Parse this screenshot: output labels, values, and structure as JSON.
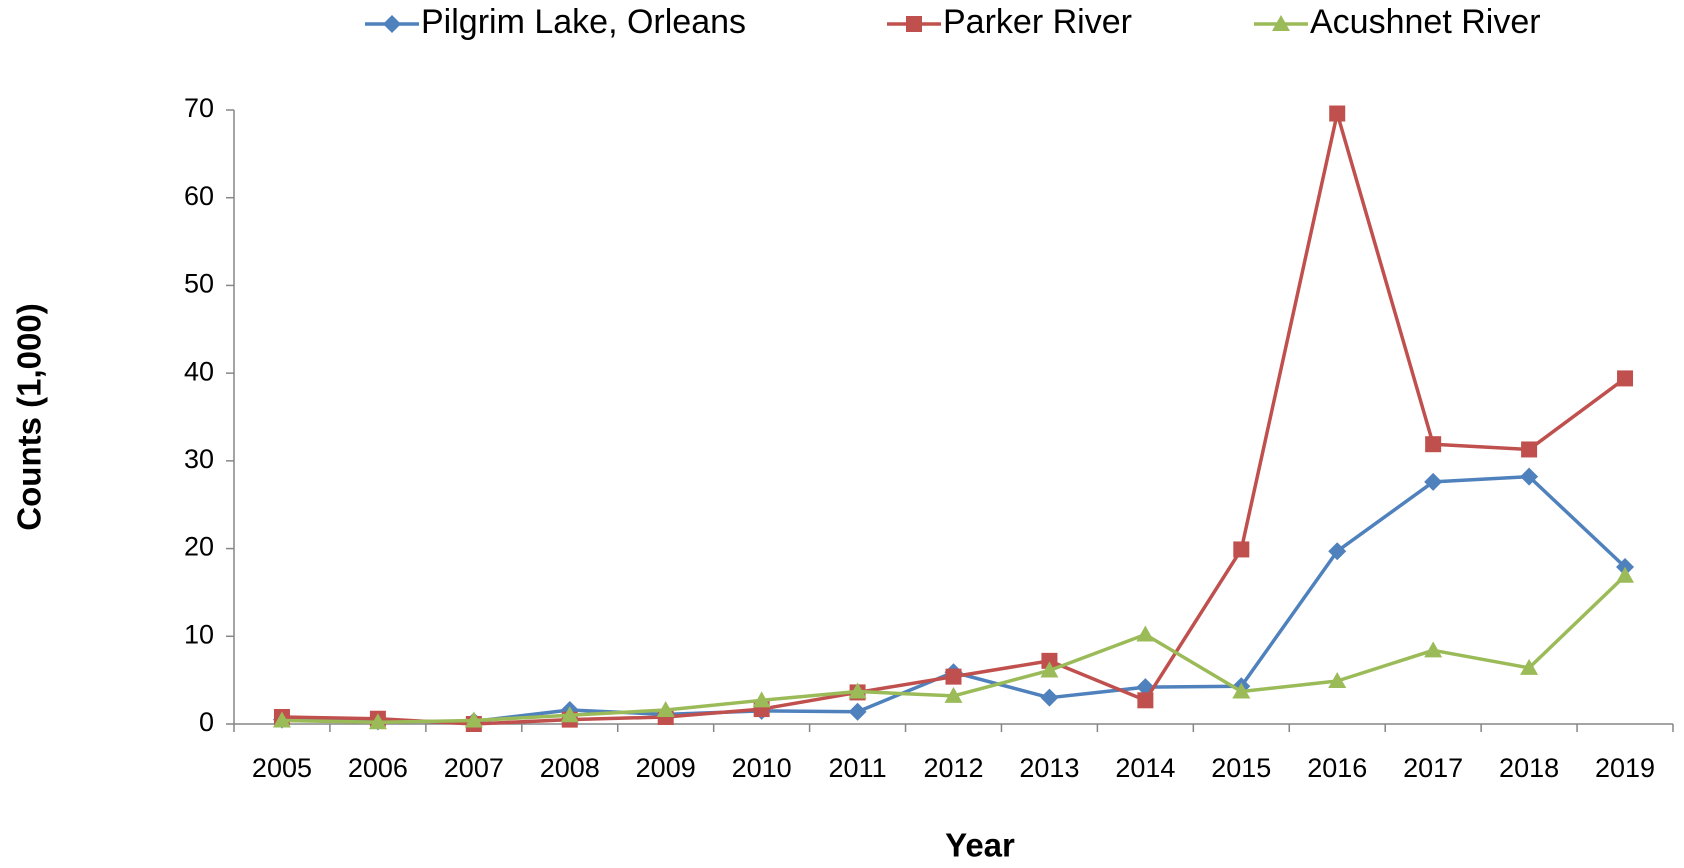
{
  "chart_data": {
    "type": "line",
    "xlabel": "Year",
    "ylabel": "Counts (1,000)",
    "categories": [
      "2005",
      "2006",
      "2007",
      "2008",
      "2009",
      "2010",
      "2011",
      "2012",
      "2013",
      "2014",
      "2015",
      "2016",
      "2017",
      "2018",
      "2019"
    ],
    "series": [
      {
        "name": "Pilgrim Lake, Orleans",
        "color": "#4f81bd",
        "marker": "diamond",
        "values": [
          0.5,
          0.3,
          0.3,
          1.6,
          1.1,
          1.5,
          1.4,
          5.9,
          3.0,
          4.2,
          4.3,
          19.7,
          27.6,
          28.2,
          17.9
        ]
      },
      {
        "name": "Parker River",
        "color": "#c0504d",
        "marker": "square",
        "values": [
          0.8,
          0.6,
          0.0,
          0.5,
          0.8,
          1.7,
          3.6,
          5.4,
          7.2,
          2.7,
          19.9,
          69.6,
          31.9,
          31.3,
          39.4
        ]
      },
      {
        "name": "Acushnet River",
        "color": "#9bbb59",
        "marker": "triangle",
        "values": [
          0.4,
          0.2,
          0.4,
          1.0,
          1.6,
          2.7,
          3.7,
          3.2,
          6.1,
          10.2,
          3.7,
          4.9,
          8.4,
          6.4,
          16.9
        ]
      }
    ],
    "ylim": [
      0,
      70
    ],
    "yticks": [
      0,
      10,
      20,
      30,
      40,
      50,
      60,
      70
    ],
    "grid": false,
    "legend": "top"
  }
}
